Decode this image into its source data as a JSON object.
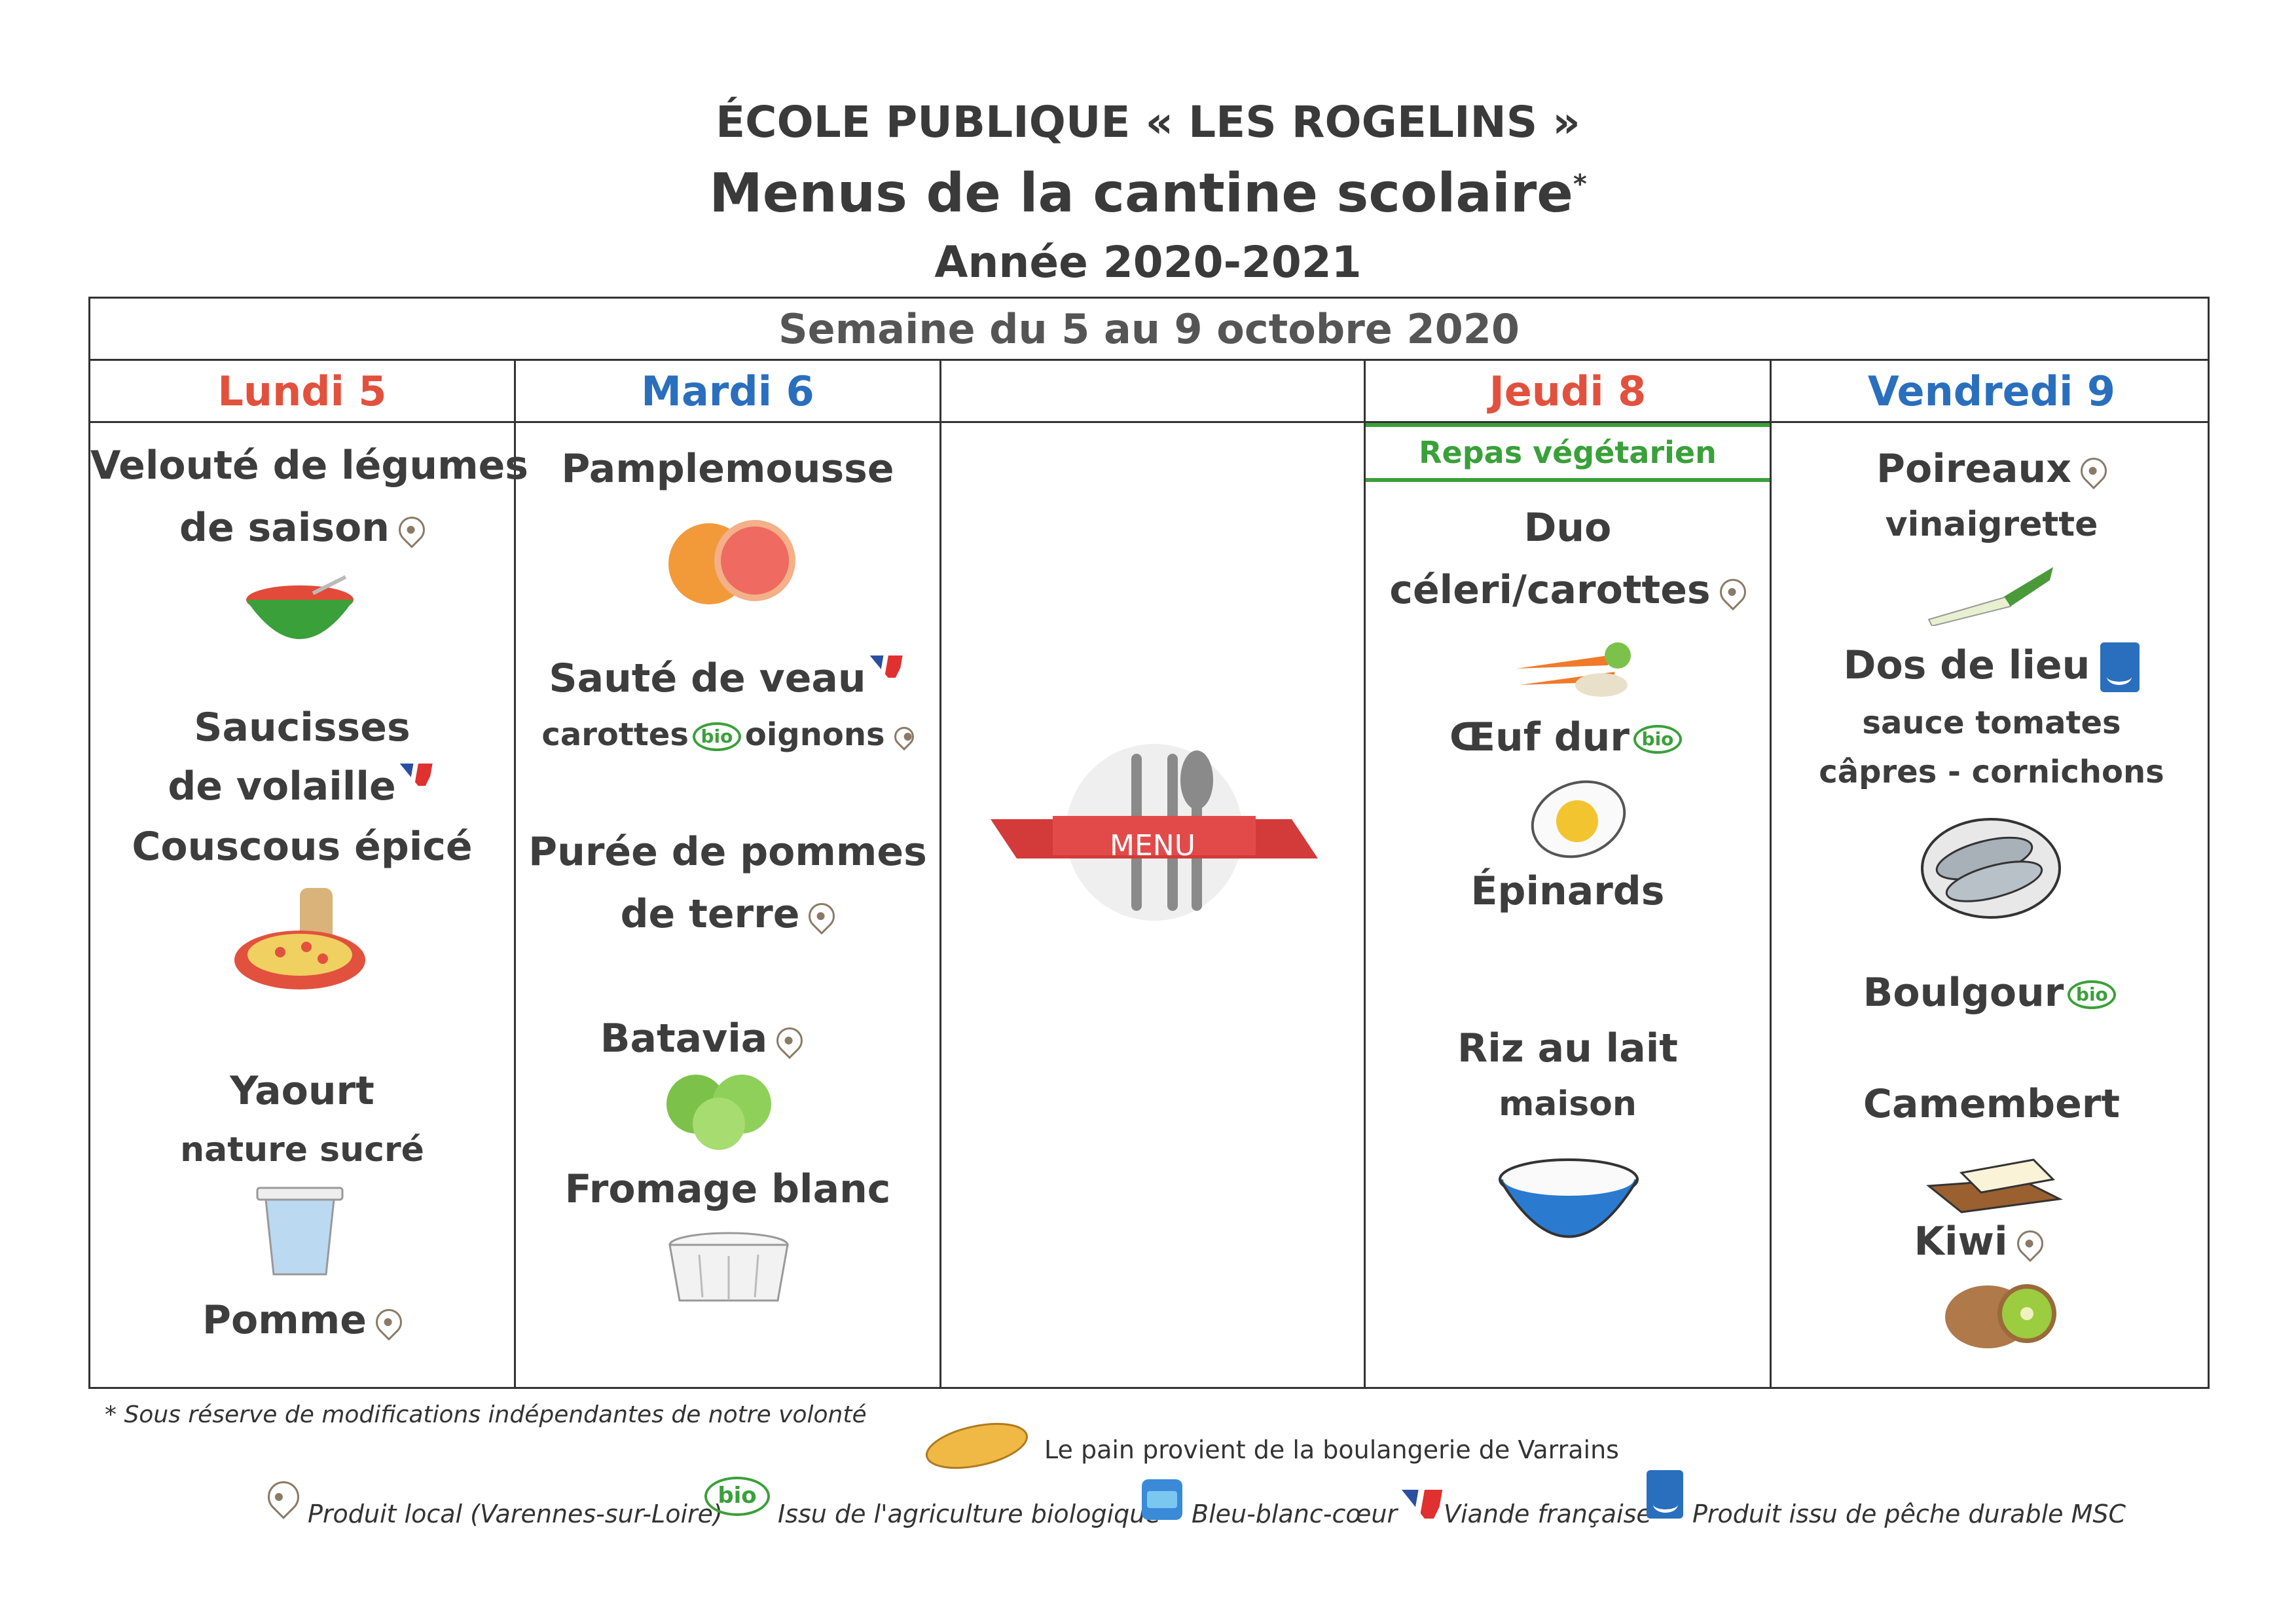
{
  "header": {
    "school": "ÉCOLE PUBLIQUE « LES ROGELINS »",
    "title": "Menus de la cantine scolaire",
    "title_mark": "*",
    "year": "Année 2020-2021"
  },
  "week": "Semaine du 5 au 9 octobre 2020",
  "days": {
    "monday": {
      "label": "Lundi 5",
      "items": [
        "Velouté de légumes",
        "de saison",
        "Saucisses",
        "de volaille",
        "Couscous épicé",
        "Yaourt",
        "nature sucré",
        "Pomme"
      ]
    },
    "tuesday": {
      "label": "Mardi 6",
      "items": [
        "Pamplemousse",
        "Sauté de veau",
        "carottes",
        "oignons",
        "Purée de pommes",
        "de terre",
        "Batavia",
        "Fromage blanc"
      ]
    },
    "wednesday": {
      "label": "",
      "menu_banner": "MENU"
    },
    "thursday": {
      "label": "Jeudi 8",
      "band": "Repas végétarien",
      "items": [
        "Duo",
        "céleri/carottes",
        "Œuf dur",
        "Épinards",
        "Riz au lait",
        "maison"
      ]
    },
    "friday": {
      "label": "Vendredi 9",
      "items": [
        "Poireaux",
        "vinaigrette",
        "Dos de lieu",
        "sauce tomates",
        "câpres - cornichons",
        "Boulgour",
        "Camembert",
        "Kiwi"
      ]
    }
  },
  "icons": {
    "bio_text": "bio"
  },
  "footer": {
    "footnote": "* Sous réserve de modifications indépendantes de notre volonté",
    "bread": "Le pain provient de la boulangerie de Varrains",
    "legend": [
      "Produit local (Varennes-sur-Loire)",
      "Issu de l'agriculture biologique",
      "Bleu-blanc-cœur",
      "Viande française",
      "Produit issu de pêche durable MSC"
    ]
  }
}
